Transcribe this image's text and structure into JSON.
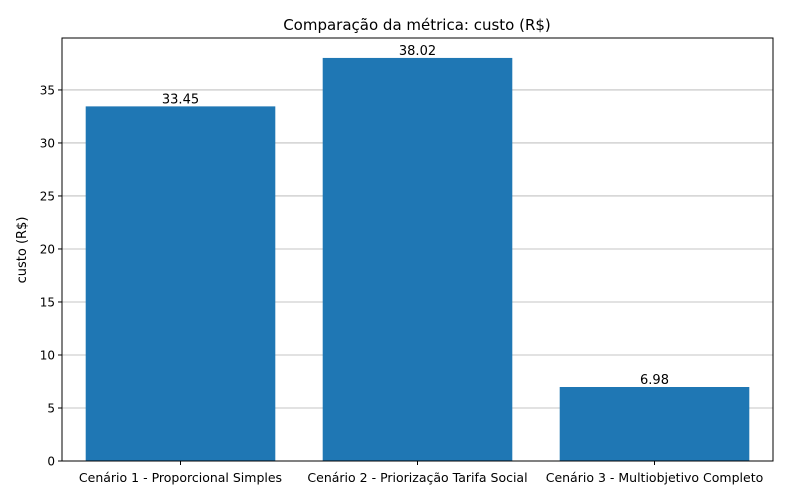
{
  "chart_data": {
    "type": "bar",
    "title": "Comparação da métrica: custo (R$)",
    "xlabel": "",
    "ylabel": "custo (R$)",
    "categories": [
      "Cenário 1 - Proporcional Simples",
      "Cenário 2 - Priorização Tarifa Social",
      "Cenário 3 - Multiobjetivo Completo"
    ],
    "values": [
      33.45,
      38.02,
      6.98
    ],
    "value_labels": [
      "33.45",
      "38.02",
      "6.98"
    ],
    "ylim": [
      0,
      39.9
    ],
    "yticks": [
      0,
      5,
      10,
      15,
      20,
      25,
      30,
      35
    ],
    "grid": "horizontal",
    "colors": {
      "bar": "#1f77b4",
      "grid": "#b0b0b0",
      "axis": "#000000"
    }
  }
}
